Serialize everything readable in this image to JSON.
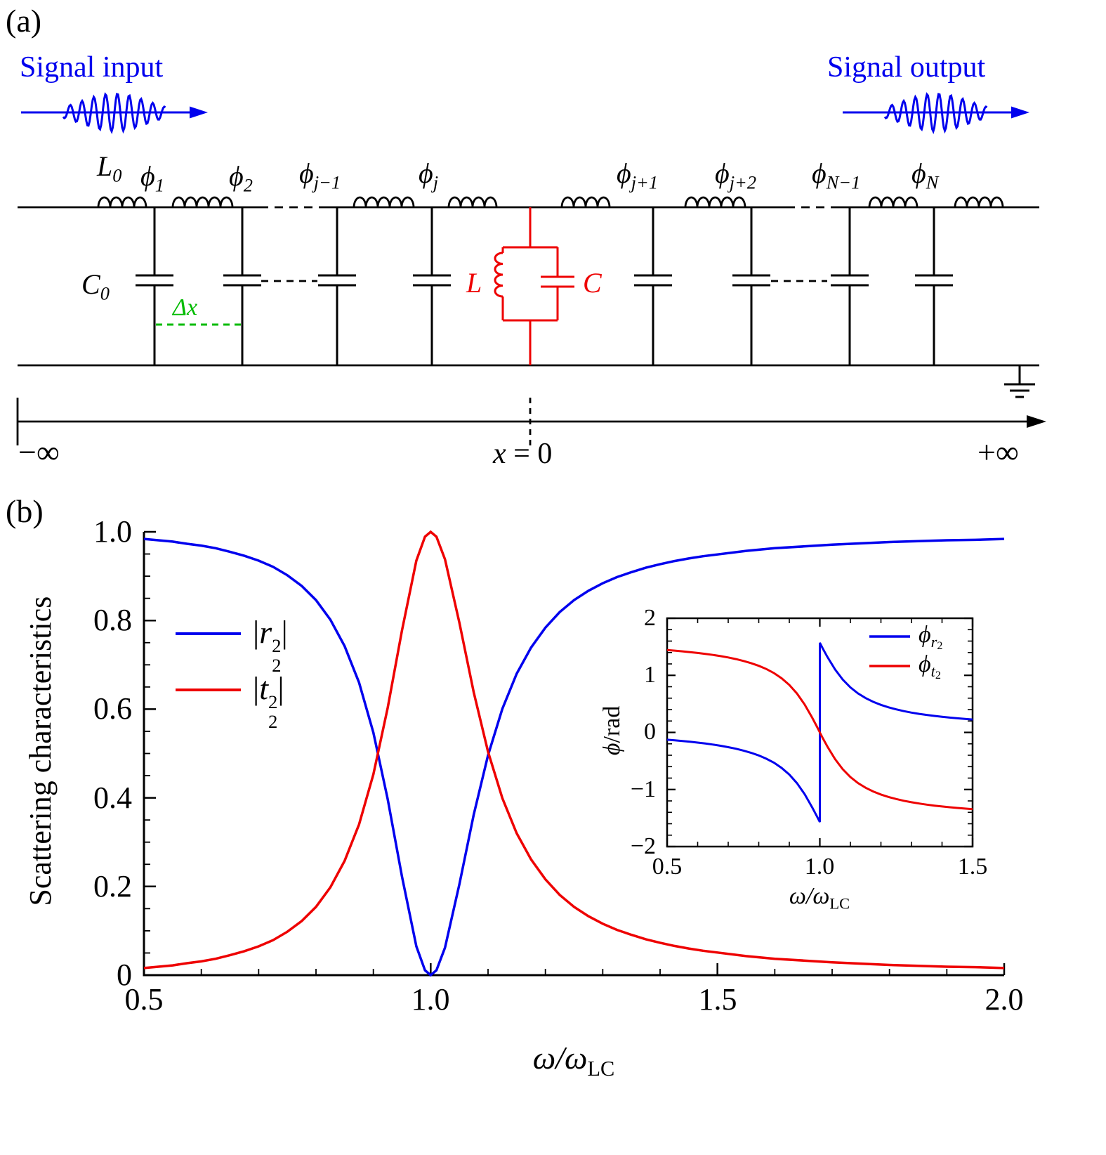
{
  "figure": {
    "panel_a_label": "(a)",
    "panel_b_label": "(b)"
  },
  "colors": {
    "blue": "#0000ee",
    "red": "#ee0000",
    "green": "#00bb00",
    "black": "#000000"
  },
  "circuit": {
    "signal_input": "Signal input",
    "signal_output": "Signal output",
    "labels": {
      "L0": {
        "b": "L",
        "s": "0"
      },
      "C0": {
        "b": "C",
        "s": "0"
      },
      "delta_x": "Δx",
      "L": "L",
      "C": "C"
    },
    "nodes": [
      {
        "b": "ϕ",
        "s": "1"
      },
      {
        "b": "ϕ",
        "s": "2"
      },
      {
        "b": "ϕ",
        "s": "j−1"
      },
      {
        "b": "ϕ",
        "s": "j"
      },
      {
        "b": "ϕ",
        "s": "j+1"
      },
      {
        "b": "ϕ",
        "s": "j+2"
      },
      {
        "b": "ϕ",
        "s": "N−1"
      },
      {
        "b": "ϕ",
        "s": "N"
      }
    ],
    "axis": {
      "left": "−∞",
      "center_var": "x",
      "center_rest": " = 0",
      "right": "+∞"
    }
  },
  "chart_data": [
    {
      "type": "line",
      "title": "",
      "xlabel": "ω/ω_LC",
      "xlabel_parts": {
        "main": "ω/ω",
        "sub": "LC"
      },
      "ylabel": "Scattering characteristics",
      "xlim": [
        0.5,
        2.0
      ],
      "ylim": [
        0,
        1
      ],
      "xticks": [
        0.5,
        1.0,
        1.5,
        2.0
      ],
      "yticks": [
        0,
        0.2,
        0.4,
        0.6,
        0.8,
        1.0
      ],
      "xticklabels": [
        "0.5",
        "1.0",
        "1.5",
        "2.0"
      ],
      "yticklabels": [
        "0",
        "0.2",
        "0.4",
        "0.6",
        "0.8",
        "1.0"
      ],
      "grid": false,
      "legend_position": "upper left",
      "legend": [
        {
          "bar": "|",
          "base": "r",
          "sup": "2",
          "sub": "2"
        },
        {
          "bar": "|",
          "base": "t",
          "sup": "2",
          "sub": "2"
        }
      ],
      "x": [
        0.5,
        0.525,
        0.55,
        0.575,
        0.6,
        0.625,
        0.65,
        0.675,
        0.7,
        0.725,
        0.75,
        0.775,
        0.8,
        0.825,
        0.85,
        0.875,
        0.9,
        0.925,
        0.95,
        0.975,
        0.99,
        1.0,
        1.01,
        1.025,
        1.05,
        1.075,
        1.1,
        1.125,
        1.15,
        1.175,
        1.2,
        1.225,
        1.25,
        1.275,
        1.3,
        1.325,
        1.35,
        1.375,
        1.4,
        1.425,
        1.45,
        1.475,
        1.5,
        1.55,
        1.6,
        1.65,
        1.7,
        1.75,
        1.8,
        1.85,
        1.9,
        1.95,
        2.0
      ],
      "series": [
        {
          "name": "|r2^2| (reflection)",
          "color": "blue",
          "values": [
            0.984,
            0.981,
            0.978,
            0.973,
            0.969,
            0.963,
            0.955,
            0.946,
            0.935,
            0.921,
            0.902,
            0.878,
            0.846,
            0.802,
            0.742,
            0.66,
            0.547,
            0.397,
            0.222,
            0.065,
            0.011,
            0.0,
            0.011,
            0.062,
            0.205,
            0.362,
            0.496,
            0.601,
            0.68,
            0.739,
            0.784,
            0.819,
            0.846,
            0.867,
            0.884,
            0.898,
            0.909,
            0.919,
            0.927,
            0.934,
            0.94,
            0.945,
            0.949,
            0.957,
            0.963,
            0.967,
            0.971,
            0.974,
            0.977,
            0.979,
            0.981,
            0.982,
            0.984
          ]
        },
        {
          "name": "|t2^2| (transmission)",
          "color": "red",
          "values": [
            0.016,
            0.019,
            0.022,
            0.027,
            0.031,
            0.037,
            0.045,
            0.054,
            0.065,
            0.079,
            0.098,
            0.122,
            0.154,
            0.198,
            0.258,
            0.34,
            0.453,
            0.603,
            0.778,
            0.935,
            0.989,
            1.0,
            0.989,
            0.938,
            0.795,
            0.638,
            0.504,
            0.399,
            0.32,
            0.261,
            0.216,
            0.181,
            0.154,
            0.133,
            0.116,
            0.102,
            0.091,
            0.081,
            0.073,
            0.066,
            0.06,
            0.055,
            0.051,
            0.043,
            0.037,
            0.033,
            0.029,
            0.026,
            0.023,
            0.021,
            0.019,
            0.018,
            0.016
          ]
        }
      ]
    },
    {
      "type": "line",
      "title": "",
      "xlabel": "ω/ω_LC",
      "xlabel_parts": {
        "main": "ω/ω",
        "sub": "LC"
      },
      "ylabel": "ϕ/rad",
      "ylabel_parts": {
        "base": "ϕ",
        "rest": "/rad"
      },
      "xlim": [
        0.5,
        1.5
      ],
      "ylim": [
        -2,
        2
      ],
      "xticks": [
        0.5,
        1.0,
        1.5
      ],
      "yticks": [
        -2,
        -1,
        0,
        1,
        2
      ],
      "xticklabels": [
        "0.5",
        "1.0",
        "1.5"
      ],
      "yticklabels": [
        "−2",
        "−1",
        "0",
        "1",
        "2"
      ],
      "grid": false,
      "legend_position": "upper right",
      "legend": [
        {
          "base": "ϕ",
          "sub": "r",
          "subsub": "2"
        },
        {
          "base": "ϕ",
          "sub": "t",
          "subsub": "2"
        }
      ],
      "series": [
        {
          "name": "phi_r2 (reflection phase)",
          "color": "blue",
          "points": [
            [
              0.5,
              -0.128
            ],
            [
              0.525,
              -0.139
            ],
            [
              0.55,
              -0.151
            ],
            [
              0.575,
              -0.164
            ],
            [
              0.6,
              -0.178
            ],
            [
              0.625,
              -0.195
            ],
            [
              0.65,
              -0.213
            ],
            [
              0.675,
              -0.234
            ],
            [
              0.7,
              -0.258
            ],
            [
              0.725,
              -0.286
            ],
            [
              0.75,
              -0.319
            ],
            [
              0.775,
              -0.357
            ],
            [
              0.8,
              -0.404
            ],
            [
              0.825,
              -0.461
            ],
            [
              0.85,
              -0.532
            ],
            [
              0.875,
              -0.623
            ],
            [
              0.9,
              -0.739
            ],
            [
              0.925,
              -0.889
            ],
            [
              0.95,
              -1.081
            ],
            [
              0.975,
              -1.313
            ],
            [
              0.99,
              -1.467
            ],
            [
              1.0,
              -1.571
            ],
            [
              1.0,
              1.571
            ],
            [
              1.01,
              1.467
            ],
            [
              1.025,
              1.319
            ],
            [
              1.05,
              1.101
            ],
            [
              1.075,
              0.926
            ],
            [
              1.1,
              0.789
            ],
            [
              1.125,
              0.683
            ],
            [
              1.15,
              0.601
            ],
            [
              1.175,
              0.536
            ],
            [
              1.2,
              0.483
            ],
            [
              1.225,
              0.44
            ],
            [
              1.25,
              0.404
            ],
            [
              1.275,
              0.373
            ],
            [
              1.3,
              0.347
            ],
            [
              1.325,
              0.325
            ],
            [
              1.35,
              0.306
            ],
            [
              1.375,
              0.289
            ],
            [
              1.4,
              0.273
            ],
            [
              1.425,
              0.26
            ],
            [
              1.45,
              0.248
            ],
            [
              1.475,
              0.237
            ],
            [
              1.5,
              0.227
            ]
          ]
        },
        {
          "name": "phi_t2 (transmission phase)",
          "color": "red",
          "points": [
            [
              0.5,
              1.443
            ],
            [
              0.525,
              1.432
            ],
            [
              0.55,
              1.42
            ],
            [
              0.575,
              1.407
            ],
            [
              0.6,
              1.392
            ],
            [
              0.625,
              1.376
            ],
            [
              0.65,
              1.358
            ],
            [
              0.675,
              1.337
            ],
            [
              0.7,
              1.313
            ],
            [
              0.725,
              1.285
            ],
            [
              0.75,
              1.252
            ],
            [
              0.775,
              1.214
            ],
            [
              0.8,
              1.167
            ],
            [
              0.825,
              1.11
            ],
            [
              0.85,
              1.039
            ],
            [
              0.875,
              0.948
            ],
            [
              0.9,
              0.832
            ],
            [
              0.925,
              0.682
            ],
            [
              0.95,
              0.49
            ],
            [
              0.975,
              0.258
            ],
            [
              0.99,
              0.104
            ],
            [
              1.0,
              0.0
            ],
            [
              1.01,
              -0.103
            ],
            [
              1.025,
              -0.251
            ],
            [
              1.05,
              -0.47
            ],
            [
              1.075,
              -0.645
            ],
            [
              1.1,
              -0.782
            ],
            [
              1.125,
              -0.888
            ],
            [
              1.15,
              -0.97
            ],
            [
              1.175,
              -1.035
            ],
            [
              1.2,
              -1.088
            ],
            [
              1.225,
              -1.131
            ],
            [
              1.25,
              -1.167
            ],
            [
              1.275,
              -1.197
            ],
            [
              1.3,
              -1.223
            ],
            [
              1.325,
              -1.246
            ],
            [
              1.35,
              -1.265
            ],
            [
              1.375,
              -1.282
            ],
            [
              1.4,
              -1.297
            ],
            [
              1.425,
              -1.311
            ],
            [
              1.45,
              -1.323
            ],
            [
              1.475,
              -1.334
            ],
            [
              1.5,
              -1.344
            ]
          ]
        }
      ]
    }
  ]
}
